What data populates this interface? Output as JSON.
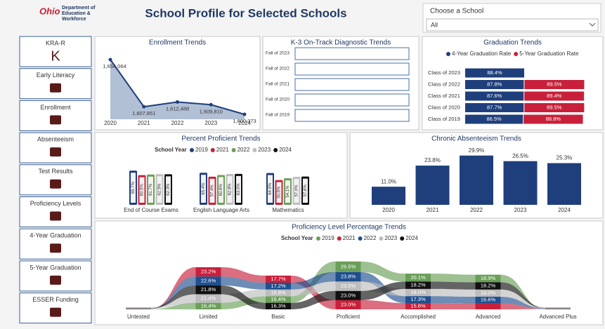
{
  "header": {
    "title": "School Profile for Selected Schools",
    "logo": {
      "brand": "Ohio",
      "lines": [
        "Department of",
        "Education &",
        "Workforce"
      ]
    },
    "filter": {
      "label": "Choose a School",
      "value": "All"
    }
  },
  "nav": {
    "items": [
      {
        "label": "KRA-R",
        "icon": "K"
      },
      {
        "label": "Early Literacy"
      },
      {
        "label": "Enrollment"
      },
      {
        "label": "Absenteeism"
      },
      {
        "label": "Test Results"
      },
      {
        "label": "Proficiency Levels"
      },
      {
        "label": "4-Year Graduation"
      },
      {
        "label": "5-Year Graduation"
      },
      {
        "label": "ESSER Funding"
      }
    ]
  },
  "chart_data": [
    {
      "type": "area",
      "title": "Enrollment Trends",
      "categories": [
        "2020",
        "2021",
        "2022",
        "2023",
        "2024"
      ],
      "values": [
        1654064,
        1607851,
        1612488,
        1609810,
        1600373
      ],
      "value_labels": [
        "1,654,064",
        "1,607,851",
        "1,612,488",
        "1,609,810",
        "1,600,373"
      ],
      "color": "#1f3f7c"
    },
    {
      "type": "hbar",
      "title": "K-3 On-Track Diagnostic Trends",
      "categories": [
        "Fall of 2023",
        "Fall of 2022",
        "Fall of 2021",
        "Fall of 2020",
        "Fall of 2019"
      ]
    },
    {
      "type": "stacked_hbar",
      "title": "Graduation Trends",
      "categories": [
        "Class of 2023",
        "Class of 2022",
        "Class of 2021",
        "Class of 2020",
        "Class of 2019"
      ],
      "series": [
        {
          "name": "4-Year Graduation Rate",
          "color": "#1f3f7c",
          "values": [
            88.4,
            87.8,
            87.6,
            87.7,
            86.5
          ],
          "value_labels": [
            "88.4%",
            "87.8%",
            "87.6%",
            "87.7%",
            "86.5%"
          ]
        },
        {
          "name": "5-Year Graduation Rate",
          "color": "#c8203a",
          "values": [
            null,
            89.5,
            89.4,
            89.5,
            88.8
          ],
          "value_labels": [
            null,
            "89.5%",
            "89.4%",
            "89.5%",
            "88.8%"
          ]
        }
      ]
    },
    {
      "type": "grouped_bar",
      "title": "Percent Proficient Trends",
      "legend_title": "School Year",
      "categories": [
        "End of Course Exams",
        "English Language Arts",
        "Mathematics"
      ],
      "series": [
        {
          "name": "2019",
          "color": "#1f3f7c",
          "values": [
            69.7,
            65.4,
            64.9
          ],
          "value_labels": [
            "69.7%",
            "65.4%",
            "64.9%"
          ]
        },
        {
          "name": "2021",
          "color": "#c8203a",
          "values": [
            60.5,
            57.4,
            50.6
          ],
          "value_labels": [
            "60.5%",
            "57.4%",
            "50.6%"
          ]
        },
        {
          "name": "2022",
          "color": "#6a9f58",
          "values": [
            61.7,
            60.8,
            54.1
          ],
          "value_labels": [
            "61.7%",
            "60.8%",
            "54.1%"
          ]
        },
        {
          "name": "2023",
          "color": "#bdbdbd",
          "values": [
            62.5,
            62.8,
            57.0
          ],
          "value_labels": [
            "62.5%",
            "62.8%",
            "57.0%"
          ]
        },
        {
          "name": "2024",
          "color": "#111111",
          "values": [
            62.3,
            63.0,
            57.6
          ],
          "value_labels": [
            "62.3%",
            "63.0%",
            "57.6%"
          ]
        }
      ]
    },
    {
      "type": "bar",
      "title": "Chronic Absenteeism Trends",
      "categories": [
        "2020",
        "2021",
        "2022",
        "2023",
        "2024"
      ],
      "values": [
        11.0,
        23.8,
        29.9,
        26.5,
        25.3
      ],
      "value_labels": [
        "11.0%",
        "23.8%",
        "29.9%",
        "26.5%",
        "25.3%"
      ],
      "color": "#1f3f7c"
    },
    {
      "type": "ribbon",
      "title": "Proficiency Level Percentage Trends",
      "legend_title": "School Year",
      "categories": [
        "Untested",
        "Limited",
        "Basic",
        "Proficient",
        "Accomplished",
        "Advanced",
        "Advanced Plus"
      ],
      "series": [
        {
          "name": "2019",
          "color": "#6a9f58",
          "values": [
            0.8,
            16.4,
            16.4,
            26.5,
            20.1,
            18.9,
            0.8
          ],
          "value_labels": [
            null,
            "16.4%",
            "16.4%",
            "26.5%",
            "20.1%",
            "18.9%",
            null
          ]
        },
        {
          "name": "2021",
          "color": "#c8203a",
          "values": [
            0.8,
            23.2,
            17.7,
            23.0,
            15.8,
            15.0,
            0.8
          ],
          "value_labels": [
            null,
            "23.2%",
            "17.7%",
            "23.0%",
            "15.8%",
            null,
            null
          ]
        },
        {
          "name": "2022",
          "color": "#1f4f8f",
          "values": [
            0.8,
            22.6,
            17.2,
            23.8,
            17.3,
            16.6,
            0.8
          ],
          "value_labels": [
            null,
            "22.6%",
            "17.2%",
            "23.8%",
            "17.3%",
            "16.6%",
            null
          ]
        },
        {
          "name": "2023",
          "color": "#bdbdbd",
          "values": [
            0.8,
            21.4,
            16.8,
            23.5,
            18.0,
            18.0,
            0.8
          ],
          "value_labels": [
            null,
            "21.4%",
            "16.8%",
            "23.5%",
            "18.0%",
            "18.0%",
            null
          ]
        },
        {
          "name": "2024",
          "color": "#111111",
          "values": [
            0.8,
            21.8,
            16.3,
            23.0,
            18.2,
            18.2,
            0.8
          ],
          "value_labels": [
            null,
            "21.8%",
            "16.3%",
            "23.0%",
            "18.2%",
            "18.2%",
            null
          ]
        }
      ]
    }
  ]
}
